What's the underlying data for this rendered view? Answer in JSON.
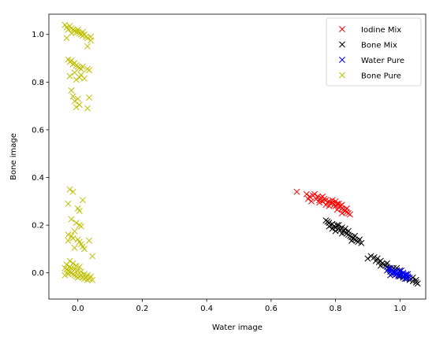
{
  "chart_data": {
    "type": "scatter",
    "title": "",
    "xlabel": "Water image",
    "ylabel": "Bone image",
    "xlim": [
      -0.09,
      1.08
    ],
    "ylim": [
      -0.11,
      1.085
    ],
    "xticks": [
      0.0,
      0.2,
      0.4,
      0.6,
      0.8,
      1.0
    ],
    "yticks": [
      0.0,
      0.2,
      0.4,
      0.6,
      0.8,
      1.0
    ],
    "grid": false,
    "legend_position": "top-right",
    "marker": "x",
    "series": [
      {
        "name": "Iodine Mix",
        "color": "#ff0000",
        "points": [
          [
            0.68,
            0.34
          ],
          [
            0.71,
            0.33
          ],
          [
            0.72,
            0.32
          ],
          [
            0.73,
            0.325
          ],
          [
            0.74,
            0.31
          ],
          [
            0.745,
            0.32
          ],
          [
            0.75,
            0.305
          ],
          [
            0.755,
            0.315
          ],
          [
            0.76,
            0.3
          ],
          [
            0.765,
            0.31
          ],
          [
            0.77,
            0.305
          ],
          [
            0.775,
            0.295
          ],
          [
            0.78,
            0.3
          ],
          [
            0.785,
            0.29
          ],
          [
            0.79,
            0.295
          ],
          [
            0.795,
            0.285
          ],
          [
            0.8,
            0.28
          ],
          [
            0.805,
            0.29
          ],
          [
            0.81,
            0.275
          ],
          [
            0.815,
            0.28
          ],
          [
            0.82,
            0.27
          ],
          [
            0.825,
            0.265
          ],
          [
            0.83,
            0.26
          ],
          [
            0.835,
            0.255
          ],
          [
            0.84,
            0.25
          ],
          [
            0.715,
            0.31
          ],
          [
            0.725,
            0.3
          ],
          [
            0.735,
            0.33
          ],
          [
            0.76,
            0.32
          ],
          [
            0.79,
            0.305
          ],
          [
            0.8,
            0.3
          ],
          [
            0.81,
            0.29
          ],
          [
            0.82,
            0.285
          ],
          [
            0.77,
            0.285
          ],
          [
            0.78,
            0.28
          ],
          [
            0.75,
            0.295
          ],
          [
            0.835,
            0.27
          ],
          [
            0.845,
            0.245
          ],
          [
            0.82,
            0.25
          ],
          [
            0.805,
            0.265
          ]
        ]
      },
      {
        "name": "Bone Mix",
        "color": "#000000",
        "points": [
          [
            0.77,
            0.22
          ],
          [
            0.775,
            0.215
          ],
          [
            0.78,
            0.21
          ],
          [
            0.785,
            0.2
          ],
          [
            0.79,
            0.205
          ],
          [
            0.795,
            0.195
          ],
          [
            0.8,
            0.19
          ],
          [
            0.805,
            0.2
          ],
          [
            0.81,
            0.185
          ],
          [
            0.815,
            0.18
          ],
          [
            0.82,
            0.19
          ],
          [
            0.825,
            0.175
          ],
          [
            0.83,
            0.17
          ],
          [
            0.835,
            0.165
          ],
          [
            0.84,
            0.16
          ],
          [
            0.845,
            0.155
          ],
          [
            0.85,
            0.15
          ],
          [
            0.855,
            0.145
          ],
          [
            0.86,
            0.14
          ],
          [
            0.865,
            0.135
          ],
          [
            0.87,
            0.13
          ],
          [
            0.875,
            0.14
          ],
          [
            0.88,
            0.125
          ],
          [
            0.78,
            0.195
          ],
          [
            0.8,
            0.175
          ],
          [
            0.82,
            0.165
          ],
          [
            0.84,
            0.175
          ],
          [
            0.86,
            0.155
          ],
          [
            0.79,
            0.185
          ],
          [
            0.81,
            0.2
          ],
          [
            0.83,
            0.185
          ],
          [
            0.85,
            0.135
          ],
          [
            0.9,
            0.06
          ],
          [
            0.91,
            0.07
          ],
          [
            0.92,
            0.065
          ],
          [
            0.925,
            0.05
          ],
          [
            0.93,
            0.06
          ],
          [
            0.935,
            0.045
          ],
          [
            0.94,
            0.05
          ],
          [
            0.945,
            0.04
          ],
          [
            0.95,
            0.035
          ],
          [
            0.955,
            0.03
          ],
          [
            0.96,
            0.025
          ],
          [
            0.965,
            0.02
          ],
          [
            0.97,
            0.015
          ],
          [
            0.975,
            0.01
          ],
          [
            0.98,
            0.005
          ],
          [
            0.985,
            0.0
          ],
          [
            0.99,
            -0.005
          ],
          [
            0.995,
            -0.01
          ],
          [
            1.0,
            -0.015
          ],
          [
            1.01,
            -0.02
          ],
          [
            1.02,
            -0.025
          ],
          [
            1.03,
            -0.03
          ],
          [
            1.04,
            -0.035
          ],
          [
            1.05,
            -0.04
          ],
          [
            1.055,
            -0.045
          ],
          [
            0.94,
            0.03
          ],
          [
            0.96,
            0.04
          ],
          [
            0.98,
            0.02
          ],
          [
            1.0,
            0.01
          ],
          [
            1.02,
            -0.01
          ],
          [
            1.04,
            -0.02
          ],
          [
            1.05,
            -0.03
          ],
          [
            0.97,
            -0.01
          ],
          [
            0.99,
            0.02
          ]
        ]
      },
      {
        "name": "Water Pure",
        "color": "#0000ff",
        "points": [
          [
            0.96,
            0.01
          ],
          [
            0.965,
            0.015
          ],
          [
            0.97,
            0.005
          ],
          [
            0.975,
            0.01
          ],
          [
            0.98,
            0.0
          ],
          [
            0.985,
            0.005
          ],
          [
            0.99,
            -0.005
          ],
          [
            0.995,
            0.0
          ],
          [
            1.0,
            -0.01
          ],
          [
            1.005,
            -0.005
          ],
          [
            1.01,
            -0.015
          ],
          [
            1.015,
            -0.01
          ],
          [
            1.02,
            -0.02
          ],
          [
            1.025,
            -0.015
          ],
          [
            1.03,
            -0.02
          ],
          [
            0.975,
            -0.005
          ],
          [
            0.99,
            0.01
          ],
          [
            1.0,
            0.005
          ],
          [
            1.01,
            0.0
          ],
          [
            1.02,
            -0.005
          ],
          [
            0.985,
            -0.01
          ],
          [
            0.995,
            -0.015
          ],
          [
            1.005,
            0.01
          ],
          [
            1.015,
            -0.025
          ],
          [
            0.97,
            0.02
          ],
          [
            1.025,
            -0.005
          ]
        ]
      },
      {
        "name": "Bone Pure",
        "color": "#bfbf00",
        "points": [
          [
            -0.04,
            1.04
          ],
          [
            -0.035,
            1.03
          ],
          [
            -0.03,
            1.02
          ],
          [
            -0.025,
            1.035
          ],
          [
            -0.02,
            1.025
          ],
          [
            -0.015,
            1.02
          ],
          [
            -0.01,
            1.015
          ],
          [
            -0.005,
            1.01
          ],
          [
            0.0,
            1.01
          ],
          [
            0.005,
            1.005
          ],
          [
            0.01,
            1.0
          ],
          [
            0.015,
            0.995
          ],
          [
            0.02,
            1.0
          ],
          [
            0.025,
            0.99
          ],
          [
            0.03,
            0.985
          ],
          [
            0.04,
            0.99
          ],
          [
            -0.035,
            0.985
          ],
          [
            0.03,
            0.95
          ],
          [
            0.04,
            0.975
          ],
          [
            0.0,
            1.02
          ],
          [
            -0.02,
            1.005
          ],
          [
            0.015,
            1.01
          ],
          [
            -0.03,
            0.895
          ],
          [
            -0.025,
            0.885
          ],
          [
            -0.02,
            0.89
          ],
          [
            -0.015,
            0.875
          ],
          [
            -0.01,
            0.88
          ],
          [
            -0.005,
            0.87
          ],
          [
            0.0,
            0.865
          ],
          [
            0.005,
            0.86
          ],
          [
            0.01,
            0.855
          ],
          [
            0.015,
            0.865
          ],
          [
            -0.025,
            0.825
          ],
          [
            -0.01,
            0.84
          ],
          [
            0.005,
            0.82
          ],
          [
            0.02,
            0.815
          ],
          [
            0.03,
            0.855
          ],
          [
            0.035,
            0.85
          ],
          [
            0.01,
            0.83
          ],
          [
            -0.005,
            0.81
          ],
          [
            -0.02,
            0.765
          ],
          [
            -0.015,
            0.74
          ],
          [
            -0.01,
            0.72
          ],
          [
            0.0,
            0.73
          ],
          [
            0.005,
            0.705
          ],
          [
            -0.005,
            0.695
          ],
          [
            0.035,
            0.735
          ],
          [
            0.03,
            0.69
          ],
          [
            -0.025,
            0.35
          ],
          [
            -0.015,
            0.34
          ],
          [
            0.015,
            0.305
          ],
          [
            -0.03,
            0.29
          ],
          [
            0.0,
            0.27
          ],
          [
            0.005,
            0.26
          ],
          [
            -0.02,
            0.225
          ],
          [
            -0.005,
            0.21
          ],
          [
            0.005,
            0.2
          ],
          [
            0.01,
            0.195
          ],
          [
            -0.01,
            0.175
          ],
          [
            -0.03,
            0.16
          ],
          [
            -0.02,
            0.155
          ],
          [
            -0.015,
            0.145
          ],
          [
            0.0,
            0.14
          ],
          [
            0.005,
            0.13
          ],
          [
            -0.03,
            0.135
          ],
          [
            0.01,
            0.12
          ],
          [
            0.015,
            0.11
          ],
          [
            -0.01,
            0.105
          ],
          [
            0.02,
            0.1
          ],
          [
            0.035,
            0.135
          ],
          [
            0.045,
            0.07
          ],
          [
            -0.04,
            0.02
          ],
          [
            -0.035,
            0.015
          ],
          [
            -0.03,
            0.01
          ],
          [
            -0.025,
            0.005
          ],
          [
            -0.02,
            0.0
          ],
          [
            -0.015,
            -0.005
          ],
          [
            -0.01,
            -0.01
          ],
          [
            -0.005,
            -0.015
          ],
          [
            0.0,
            -0.02
          ],
          [
            0.005,
            -0.015
          ],
          [
            0.01,
            -0.01
          ],
          [
            0.015,
            -0.02
          ],
          [
            0.02,
            -0.025
          ],
          [
            0.025,
            -0.02
          ],
          [
            0.03,
            -0.03
          ],
          [
            0.035,
            -0.025
          ],
          [
            0.045,
            -0.03
          ],
          [
            -0.035,
            0.035
          ],
          [
            -0.025,
            0.05
          ],
          [
            -0.015,
            0.04
          ],
          [
            -0.005,
            0.03
          ],
          [
            0.005,
            0.025
          ],
          [
            -0.03,
            -0.005
          ],
          [
            -0.02,
            0.02
          ],
          [
            0.0,
            0.01
          ],
          [
            0.01,
            0.005
          ],
          [
            0.02,
            -0.005
          ],
          [
            -0.01,
            0.015
          ],
          [
            -0.04,
            -0.01
          ],
          [
            0.04,
            -0.015
          ],
          [
            0.03,
            -0.01
          ],
          [
            -0.025,
            0.025
          ]
        ]
      }
    ]
  }
}
